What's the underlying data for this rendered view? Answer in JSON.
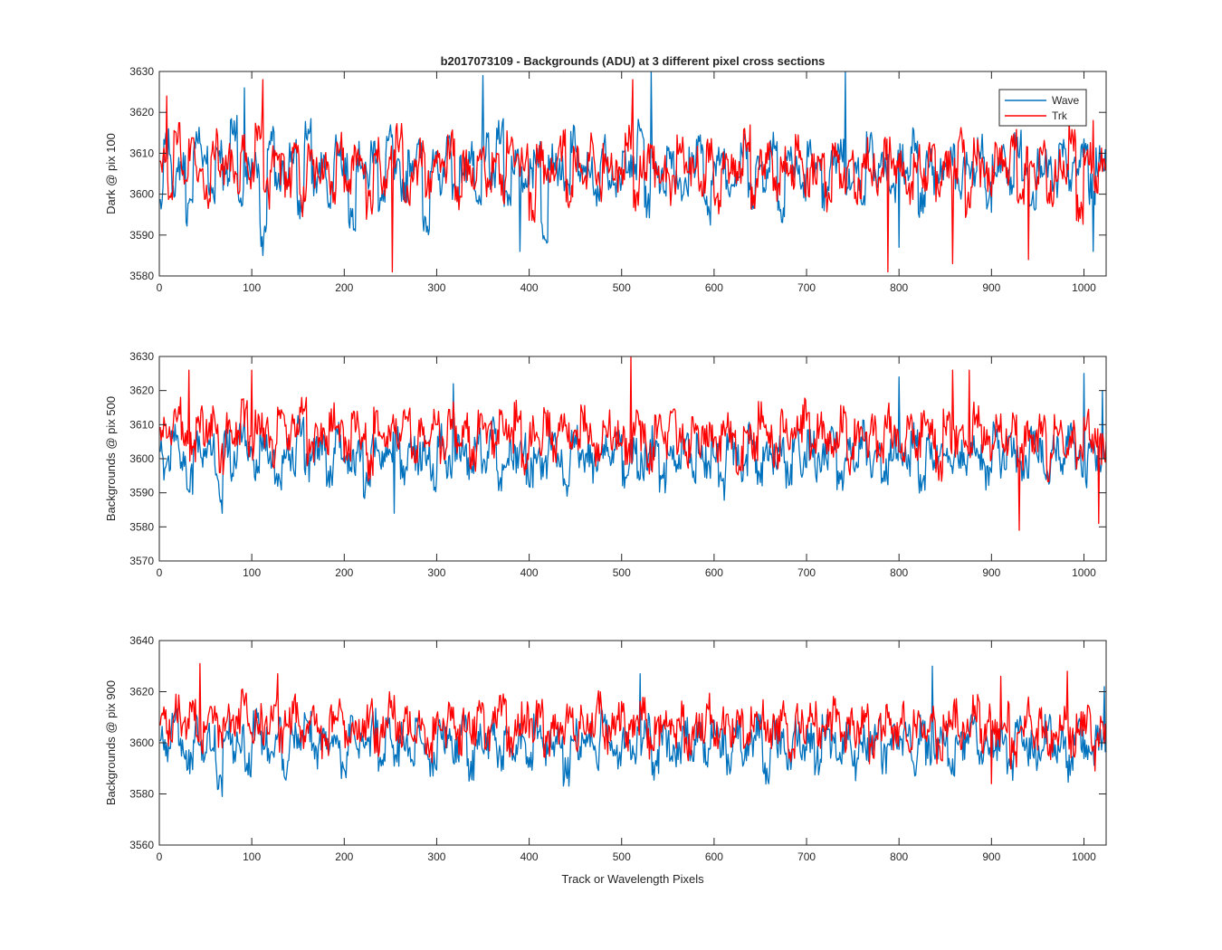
{
  "figure": {
    "title": "b2017073109 - Backgrounds (ADU) at 3 different pixel cross sections",
    "xlabel": "Track or Wavelength Pixels"
  },
  "legend": {
    "entries": [
      {
        "name": "Wave",
        "color": "#0072BD"
      },
      {
        "name": "Trk",
        "color": "#FF0000"
      }
    ],
    "placement": "top-right"
  },
  "chart_data": [
    {
      "type": "line",
      "ylabel": "Dark @ pix 100",
      "xlim": [
        0,
        1024
      ],
      "ylim": [
        3580,
        3630
      ],
      "x_ticks": [
        0,
        100,
        200,
        300,
        400,
        500,
        600,
        700,
        800,
        900,
        1000
      ],
      "y_ticks": [
        3580,
        3590,
        3600,
        3610,
        3620,
        3630
      ],
      "series": [
        {
          "name": "Wave",
          "color": "#0072BD",
          "x_start": 1,
          "x_step": 8,
          "values": [
            3598,
            3612,
            3603,
            3607,
            3596,
            3614,
            3609,
            3601,
            3611,
            3604,
            3617,
            3599,
            3606,
            3608,
            3589,
            3613,
            3602,
            3605,
            3610,
            3597,
            3615,
            3603,
            3607,
            3600,
            3612,
            3606,
            3595,
            3609,
            3604,
            3611,
            3598,
            3613,
            3605,
            3602,
            3608,
            3610,
            3594,
            3607,
            3603,
            3612,
            3601,
            3606,
            3609,
            3597,
            3611,
            3604,
            3616,
            3600,
            3608,
            3603,
            3605,
            3610,
            3592,
            3609,
            3606,
            3601,
            3613,
            3604,
            3607,
            3599,
            3611,
            3605,
            3602,
            3609,
            3606,
            3615,
            3598,
            3607,
            3603,
            3610,
            3604,
            3601,
            3608,
            3612,
            3596,
            3606,
            3609,
            3603,
            3605,
            3611,
            3600,
            3607,
            3604,
            3613,
            3597,
            3609,
            3606,
            3602,
            3610,
            3605,
            3599,
            3608,
            3611,
            3603,
            3606,
            3601,
            3612,
            3604,
            3607,
            3600,
            3609,
            3605,
            3614,
            3598,
            3608,
            3603,
            3606,
            3610,
            3601,
            3607,
            3604,
            3611,
            3599,
            3606,
            3609,
            3603,
            3612,
            3605,
            3600,
            3608,
            3607,
            3602,
            3610,
            3604,
            3606,
            3611,
            3601,
            3608
          ],
          "extremes": [
            [
              92,
              3626
            ],
            [
              350,
              3629
            ],
            [
              532,
              3630
            ],
            [
              742,
              3630
            ],
            [
              112,
              3585
            ],
            [
              390,
              3586
            ],
            [
              800,
              3587
            ],
            [
              1010,
              3586
            ]
          ]
        },
        {
          "name": "Trk",
          "color": "#FF0000",
          "x_start": 4,
          "x_step": 8,
          "values": [
            3608,
            3601,
            3614,
            3603,
            3610,
            3605,
            3599,
            3612,
            3606,
            3609,
            3602,
            3611,
            3604,
            3615,
            3600,
            3608,
            3606,
            3603,
            3613,
            3598,
            3610,
            3605,
            3607,
            3601,
            3612,
            3604,
            3609,
            3606,
            3597,
            3611,
            3603,
            3608,
            3614,
            3600,
            3606,
            3610,
            3602,
            3609,
            3605,
            3612,
            3599,
            3607,
            3604,
            3611,
            3603,
            3608,
            3601,
            3613,
            3606,
            3609,
            3597,
            3610,
            3604,
            3607,
            3612,
            3600,
            3608,
            3605,
            3611,
            3602,
            3609,
            3606,
            3603,
            3614,
            3599,
            3607,
            3610,
            3604,
            3606,
            3601,
            3612,
            3605,
            3608,
            3603,
            3611,
            3598,
            3609,
            3606,
            3604,
            3613,
            3600,
            3607,
            3610,
            3602,
            3608,
            3605,
            3612,
            3603,
            3606,
            3609,
            3599,
            3611,
            3604,
            3607,
            3601,
            3610,
            3606,
            3603,
            3612,
            3605,
            3608,
            3600,
            3609,
            3604,
            3611,
            3602,
            3607,
            3606,
            3613,
            3598,
            3610,
            3605,
            3603,
            3609,
            3606,
            3612,
            3601,
            3608,
            3604,
            3611,
            3600,
            3607,
            3605,
            3614,
            3596,
            3610,
            3603,
            3608
          ],
          "extremes": [
            [
              8,
              3624
            ],
            [
              112,
              3628
            ],
            [
              252,
              3581
            ],
            [
              512,
              3628
            ],
            [
              788,
              3581
            ],
            [
              858,
              3583
            ],
            [
              940,
              3584
            ],
            [
              1010,
              3618
            ]
          ]
        }
      ]
    },
    {
      "type": "line",
      "ylabel": "Backgrounds @ pix 500",
      "xlim": [
        0,
        1024
      ],
      "ylim": [
        3570,
        3630
      ],
      "x_ticks": [
        0,
        100,
        200,
        300,
        400,
        500,
        600,
        700,
        800,
        900,
        1000
      ],
      "y_ticks": [
        3570,
        3580,
        3590,
        3600,
        3610,
        3620,
        3630
      ],
      "series": [
        {
          "name": "Wave",
          "color": "#0072BD",
          "x_start": 1,
          "x_step": 8,
          "values": [
            3602,
            3597,
            3606,
            3600,
            3594,
            3605,
            3599,
            3603,
            3591,
            3604,
            3598,
            3607,
            3601,
            3596,
            3605,
            3600,
            3593,
            3603,
            3599,
            3608,
            3597,
            3602,
            3604,
            3595,
            3606,
            3600,
            3598,
            3603,
            3592,
            3605,
            3599,
            3601,
            3607,
            3596,
            3604,
            3600,
            3602,
            3594,
            3606,
            3598,
            3603,
            3601,
            3597,
            3605,
            3599,
            3608,
            3595,
            3602,
            3600,
            3604,
            3596,
            3603,
            3598,
            3606,
            3601,
            3593,
            3605,
            3599,
            3602,
            3597,
            3604,
            3600,
            3607,
            3595,
            3603,
            3598,
            3601,
            3605,
            3594,
            3602,
            3600,
            3606,
            3597,
            3604,
            3599,
            3603,
            3592,
            3605,
            3601,
            3598,
            3607,
            3596,
            3603,
            3600,
            3602,
            3595,
            3606,
            3599,
            3604,
            3597,
            3601,
            3605,
            3593,
            3603,
            3600,
            3607,
            3598,
            3602,
            3596,
            3604,
            3601,
            3599,
            3606,
            3594,
            3603,
            3600,
            3605,
            3597,
            3602,
            3598,
            3604,
            3601,
            3595,
            3606,
            3599,
            3603,
            3600,
            3597,
            3605,
            3602,
            3594,
            3604,
            3599,
            3607,
            3601,
            3596,
            3603,
            3600
          ],
          "extremes": [
            [
              68,
              3584
            ],
            [
              254,
              3584
            ],
            [
              318,
              3622
            ],
            [
              800,
              3624
            ],
            [
              1000,
              3625
            ],
            [
              1020,
              3620
            ]
          ]
        },
        {
          "name": "Trk",
          "color": "#FF0000",
          "x_start": 4,
          "x_step": 8,
          "values": [
            3610,
            3605,
            3614,
            3608,
            3603,
            3612,
            3607,
            3611,
            3600,
            3609,
            3606,
            3613,
            3604,
            3610,
            3608,
            3602,
            3611,
            3606,
            3609,
            3614,
            3601,
            3608,
            3605,
            3612,
            3607,
            3603,
            3610,
            3606,
            3598,
            3611,
            3604,
            3609,
            3607,
            3613,
            3602,
            3608,
            3606,
            3610,
            3603,
            3612,
            3605,
            3609,
            3601,
            3611,
            3607,
            3604,
            3610,
            3606,
            3613,
            3599,
            3608,
            3605,
            3611,
            3603,
            3609,
            3607,
            3604,
            3612,
            3606,
            3601,
            3610,
            3605,
            3608,
            3603,
            3611,
            3607,
            3600,
            3609,
            3604,
            3612,
            3606,
            3602,
            3610,
            3605,
            3608,
            3603,
            3611,
            3607,
            3599,
            3609,
            3604,
            3612,
            3606,
            3601,
            3610,
            3605,
            3608,
            3613,
            3602,
            3609,
            3606,
            3604,
            3611,
            3600,
            3608,
            3605,
            3610,
            3603,
            3612,
            3606,
            3601,
            3609,
            3604,
            3611,
            3607,
            3598,
            3610,
            3605,
            3608,
            3602,
            3612,
            3606,
            3603,
            3609,
            3604,
            3611,
            3600,
            3608,
            3606,
            3610,
            3597,
            3609,
            3604,
            3607,
            3601,
            3610,
            3605,
            3603
          ],
          "extremes": [
            [
              32,
              3626
            ],
            [
              100,
              3626
            ],
            [
              510,
              3630
            ],
            [
              858,
              3626
            ],
            [
              876,
              3626
            ],
            [
              930,
              3579
            ],
            [
              1016,
              3581
            ]
          ]
        }
      ]
    },
    {
      "type": "line",
      "ylabel": "Backgrounds @ pix 900",
      "xlim": [
        0,
        1024
      ],
      "ylim": [
        3560,
        3640
      ],
      "x_ticks": [
        0,
        100,
        200,
        300,
        400,
        500,
        600,
        700,
        800,
        900,
        1000
      ],
      "y_ticks": [
        3560,
        3580,
        3600,
        3620,
        3640
      ],
      "series": [
        {
          "name": "Wave",
          "color": "#0072BD",
          "x_start": 1,
          "x_step": 8,
          "values": [
            3602,
            3595,
            3608,
            3599,
            3591,
            3605,
            3597,
            3603,
            3588,
            3606,
            3598,
            3601,
            3593,
            3607,
            3600,
            3596,
            3604,
            3589,
            3602,
            3599,
            3606,
            3594,
            3603,
            3597,
            3600,
            3592,
            3605,
            3598,
            3601,
            3608,
            3590,
            3604,
            3597,
            3602,
            3595,
            3606,
            3599,
            3593,
            3603,
            3600,
            3596,
            3605,
            3591,
            3602,
            3598,
            3607,
            3594,
            3601,
            3599,
            3604,
            3592,
            3606,
            3597,
            3600,
            3603,
            3589,
            3605,
            3598,
            3602,
            3595,
            3607,
            3600,
            3593,
            3604,
            3597,
            3601,
            3606,
            3591,
            3603,
            3599,
            3596,
            3605,
            3598,
            3602,
            3594,
            3607,
            3600,
            3592,
            3604,
            3597,
            3601,
            3606,
            3590,
            3603,
            3599,
            3595,
            3605,
            3598,
            3602,
            3593,
            3607,
            3600,
            3596,
            3604,
            3591,
            3602,
            3598,
            3606,
            3594,
            3601,
            3599,
            3603,
            3592,
            3605,
            3597,
            3600,
            3604,
            3589,
            3602,
            3598,
            3607,
            3595,
            3601,
            3599,
            3603,
            3591,
            3606,
            3597,
            3600,
            3594,
            3605,
            3598,
            3602,
            3590,
            3604,
            3599,
            3596,
            3601
          ],
          "extremes": [
            [
              68,
              3579
            ],
            [
              520,
              3627
            ],
            [
              836,
              3630
            ],
            [
              1022,
              3622
            ]
          ]
        },
        {
          "name": "Trk",
          "color": "#FF0000",
          "x_start": 4,
          "x_step": 8,
          "values": [
            3609,
            3603,
            3614,
            3606,
            3611,
            3600,
            3608,
            3612,
            3604,
            3610,
            3607,
            3615,
            3602,
            3609,
            3605,
            3611,
            3601,
            3608,
            3613,
            3604,
            3610,
            3606,
            3599,
            3609,
            3612,
            3603,
            3607,
            3605,
            3611,
            3600,
            3608,
            3614,
            3602,
            3609,
            3606,
            3610,
            3598,
            3607,
            3604,
            3612,
            3601,
            3609,
            3605,
            3611,
            3603,
            3608,
            3613,
            3600,
            3606,
            3610,
            3604,
            3612,
            3599,
            3608,
            3605,
            3611,
            3602,
            3609,
            3607,
            3614,
            3601,
            3606,
            3610,
            3603,
            3608,
            3612,
            3600,
            3605,
            3609,
            3604,
            3611,
            3598,
            3607,
            3606,
            3613,
            3602,
            3609,
            3604,
            3610,
            3600,
            3608,
            3611,
            3603,
            3606,
            3612,
            3599,
            3609,
            3605,
            3610,
            3601,
            3607,
            3613,
            3602,
            3608,
            3604,
            3611,
            3597,
            3606,
            3609,
            3603,
            3612,
            3600,
            3607,
            3605,
            3610,
            3598,
            3608,
            3611,
            3602,
            3606,
            3613,
            3601,
            3609,
            3604,
            3610,
            3596,
            3607,
            3612,
            3603,
            3608,
            3599,
            3605,
            3611,
            3600,
            3606,
            3609,
            3602,
            3604
          ],
          "extremes": [
            [
              44,
              3631
            ],
            [
              128,
              3627
            ],
            [
              910,
              3626
            ],
            [
              982,
              3628
            ],
            [
              900,
              3584
            ],
            [
              1012,
              3589
            ]
          ]
        }
      ]
    }
  ]
}
